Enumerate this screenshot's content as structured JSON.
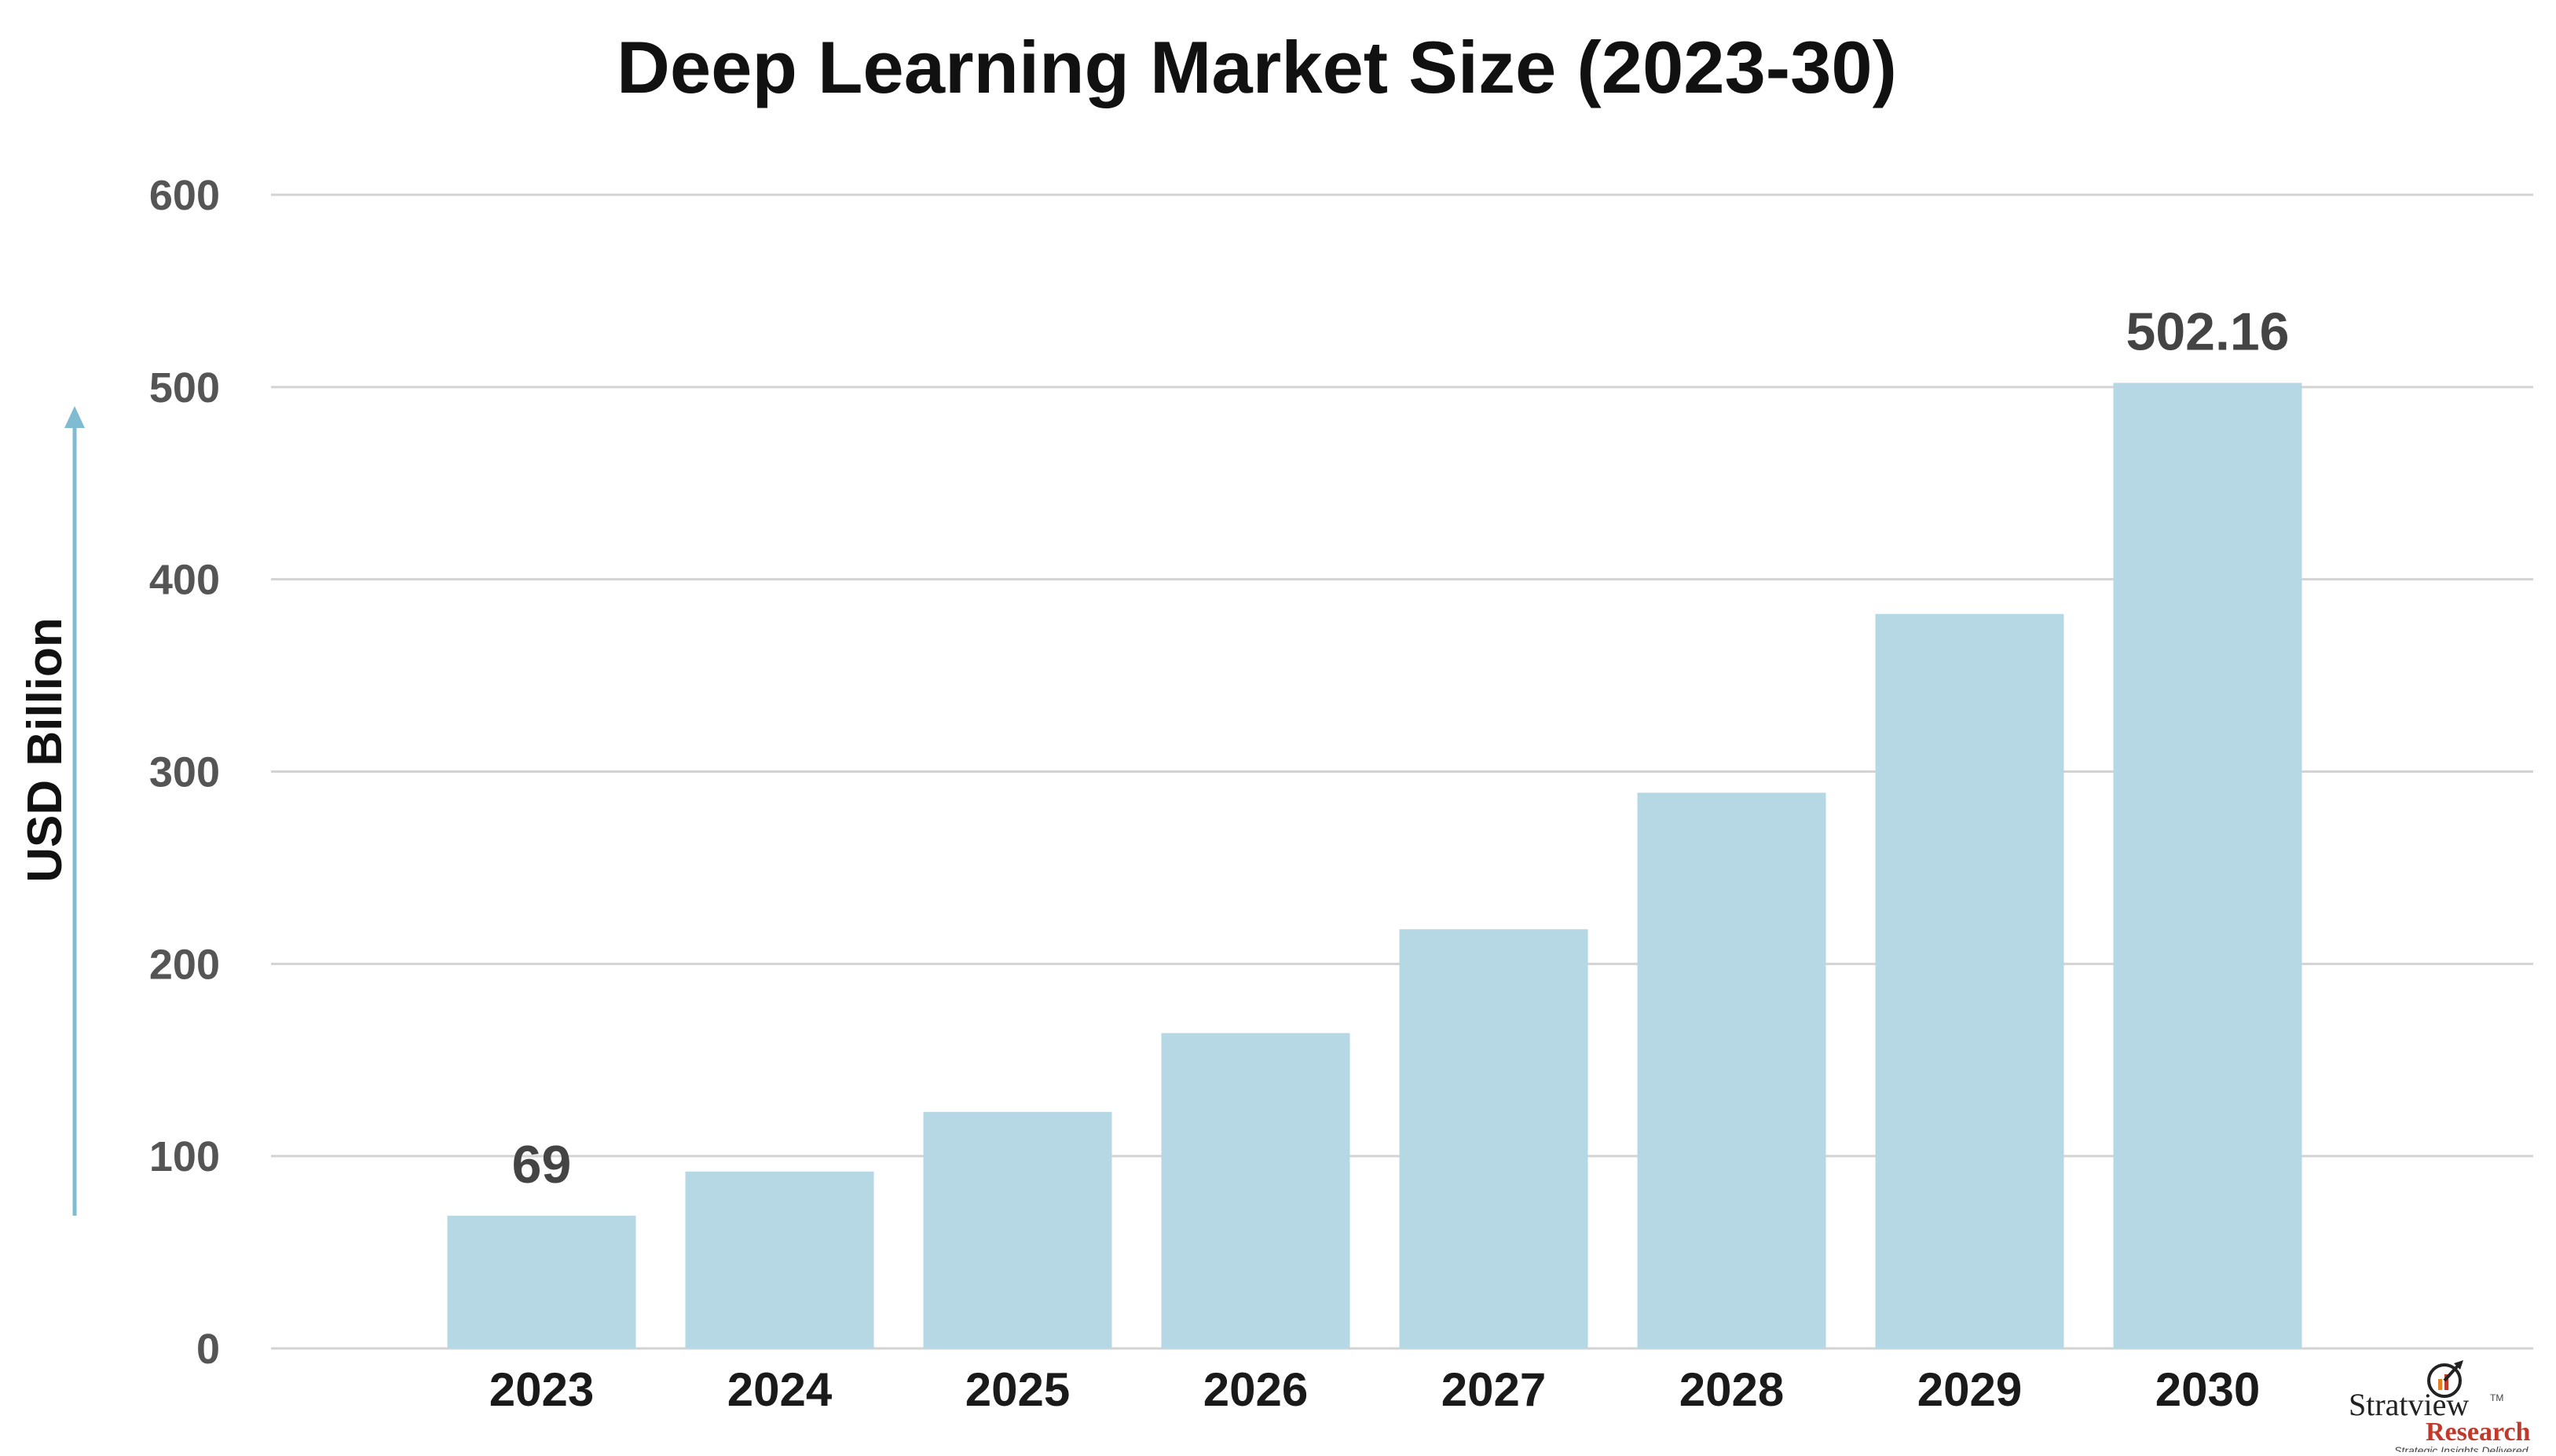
{
  "chart_data": {
    "type": "bar",
    "title": "Deep Learning Market Size (2023-30)",
    "ylabel": "USD Billion",
    "xlabel": "",
    "categories": [
      "2023",
      "2024",
      "2025",
      "2026",
      "2027",
      "2028",
      "2029",
      "2030"
    ],
    "values": [
      69,
      92,
      123,
      164,
      218,
      289,
      382,
      502.16
    ],
    "data_labels": [
      {
        "category": "2023",
        "text": "69"
      },
      {
        "category": "2030",
        "text": "502.16"
      }
    ],
    "ylim": [
      0,
      600
    ],
    "yticks": [
      0,
      100,
      200,
      300,
      400,
      500,
      600
    ],
    "grid": true,
    "legend": "none",
    "bar_color": "#b6d7e4",
    "axis_arrow_color": "#7fbcd2",
    "gridline_color": "#d3d3d3"
  },
  "logo": {
    "name": "Stratview",
    "sub": "Research",
    "tagline": "Strategic Insights Delivered",
    "tm": "TM"
  }
}
